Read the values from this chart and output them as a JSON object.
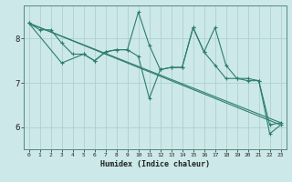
{
  "title": "",
  "xlabel": "Humidex (Indice chaleur)",
  "ylabel": "",
  "bg_color": "#cce8e8",
  "grid_color": "#b0d0d0",
  "line_color": "#2d7d6e",
  "xlim": [
    -0.5,
    23.5
  ],
  "ylim": [
    5.5,
    8.75
  ],
  "yticks": [
    6,
    7,
    8
  ],
  "xtick_labels": [
    "0",
    "1",
    "2",
    "3",
    "4",
    "5",
    "6",
    "7",
    "8",
    "9",
    "10",
    "11",
    "12",
    "13",
    "14",
    "15",
    "16",
    "17",
    "18",
    "19",
    "20",
    "21",
    "22",
    "23"
  ],
  "series": [
    {
      "x": [
        0,
        1,
        2,
        3,
        4,
        5,
        6,
        7,
        8,
        9,
        10,
        11,
        12,
        13,
        14,
        15,
        16,
        17,
        18,
        19,
        20,
        21,
        22,
        23
      ],
      "y": [
        8.35,
        8.2,
        8.2,
        7.9,
        7.65,
        7.65,
        7.5,
        7.7,
        7.75,
        7.75,
        8.6,
        7.85,
        7.3,
        7.35,
        7.35,
        8.25,
        7.7,
        8.25,
        7.4,
        7.1,
        7.1,
        7.05,
        6.05,
        6.1
      ],
      "markers": true
    },
    {
      "x": [
        0,
        23
      ],
      "y": [
        8.35,
        6.05
      ],
      "markers": false
    },
    {
      "x": [
        0,
        23
      ],
      "y": [
        8.35,
        6.1
      ],
      "markers": false
    },
    {
      "x": [
        0,
        3,
        5,
        6,
        7,
        8,
        9,
        10,
        11,
        12,
        13,
        14,
        15,
        16,
        17,
        18,
        19,
        20,
        21,
        22,
        23
      ],
      "y": [
        8.35,
        7.45,
        7.65,
        7.5,
        7.7,
        7.75,
        7.75,
        7.6,
        6.65,
        7.3,
        7.35,
        7.35,
        8.25,
        7.7,
        7.4,
        7.1,
        7.1,
        7.05,
        7.05,
        5.85,
        6.05
      ],
      "markers": true
    }
  ]
}
